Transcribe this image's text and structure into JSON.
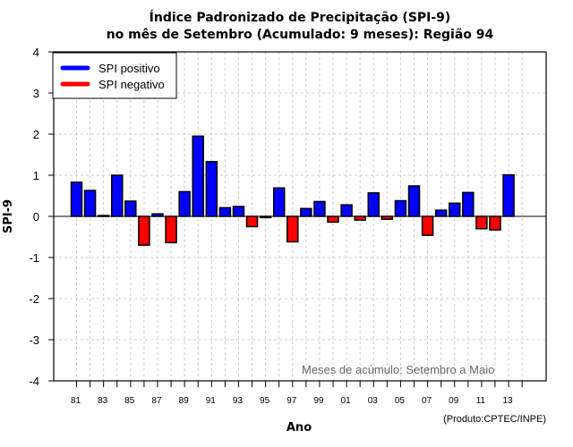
{
  "chart_data": {
    "type": "bar",
    "title": "Índice Padronizado de Precipitação (SPI-9)",
    "subtitle": "no mês de Setembro (Acumulado: 9 meses): Região 94",
    "xlabel": "Ano",
    "ylabel": "SPI-9",
    "ylim": [
      -4,
      4
    ],
    "yticks": [
      4,
      3,
      2,
      1,
      0,
      -1,
      -2,
      -3,
      -4
    ],
    "grid": true,
    "categories": [
      "81",
      "82",
      "83",
      "84",
      "85",
      "86",
      "87",
      "88",
      "89",
      "90",
      "91",
      "92",
      "93",
      "94",
      "95",
      "96",
      "97",
      "98",
      "99",
      "00",
      "01",
      "02",
      "03",
      "04",
      "05",
      "06",
      "07",
      "08",
      "09",
      "10",
      "11",
      "12",
      "13"
    ],
    "values": [
      0.83,
      0.63,
      0.02,
      1.0,
      0.37,
      -0.7,
      0.06,
      -0.64,
      0.6,
      1.95,
      1.33,
      0.21,
      0.24,
      -0.25,
      -0.03,
      0.69,
      -0.62,
      0.19,
      0.36,
      -0.14,
      0.28,
      -0.09,
      0.57,
      -0.07,
      0.38,
      0.74,
      -0.46,
      0.15,
      0.32,
      0.58,
      -0.3,
      -0.33,
      1.01
    ],
    "xtick_labels_shown": [
      "81",
      "83",
      "85",
      "87",
      "89",
      "91",
      "93",
      "95",
      "97",
      "99",
      "01",
      "03",
      "05",
      "07",
      "09",
      "11",
      "13"
    ],
    "extra_ticks_after": [
      "14"
    ],
    "legend": {
      "placement": "top-left",
      "entries": [
        {
          "label": "SPI positivo",
          "color": "#0000ff"
        },
        {
          "label": "SPI negativo",
          "color": "#ff0000"
        }
      ]
    },
    "annotation": "Meses de acúmulo: Setembro a Maio",
    "credit": "(Produto:CPTEC/INPE)",
    "colors": {
      "positive": "#0000ff",
      "negative": "#ff0000",
      "grid": "#cccccc",
      "annotation": "#666666"
    }
  }
}
